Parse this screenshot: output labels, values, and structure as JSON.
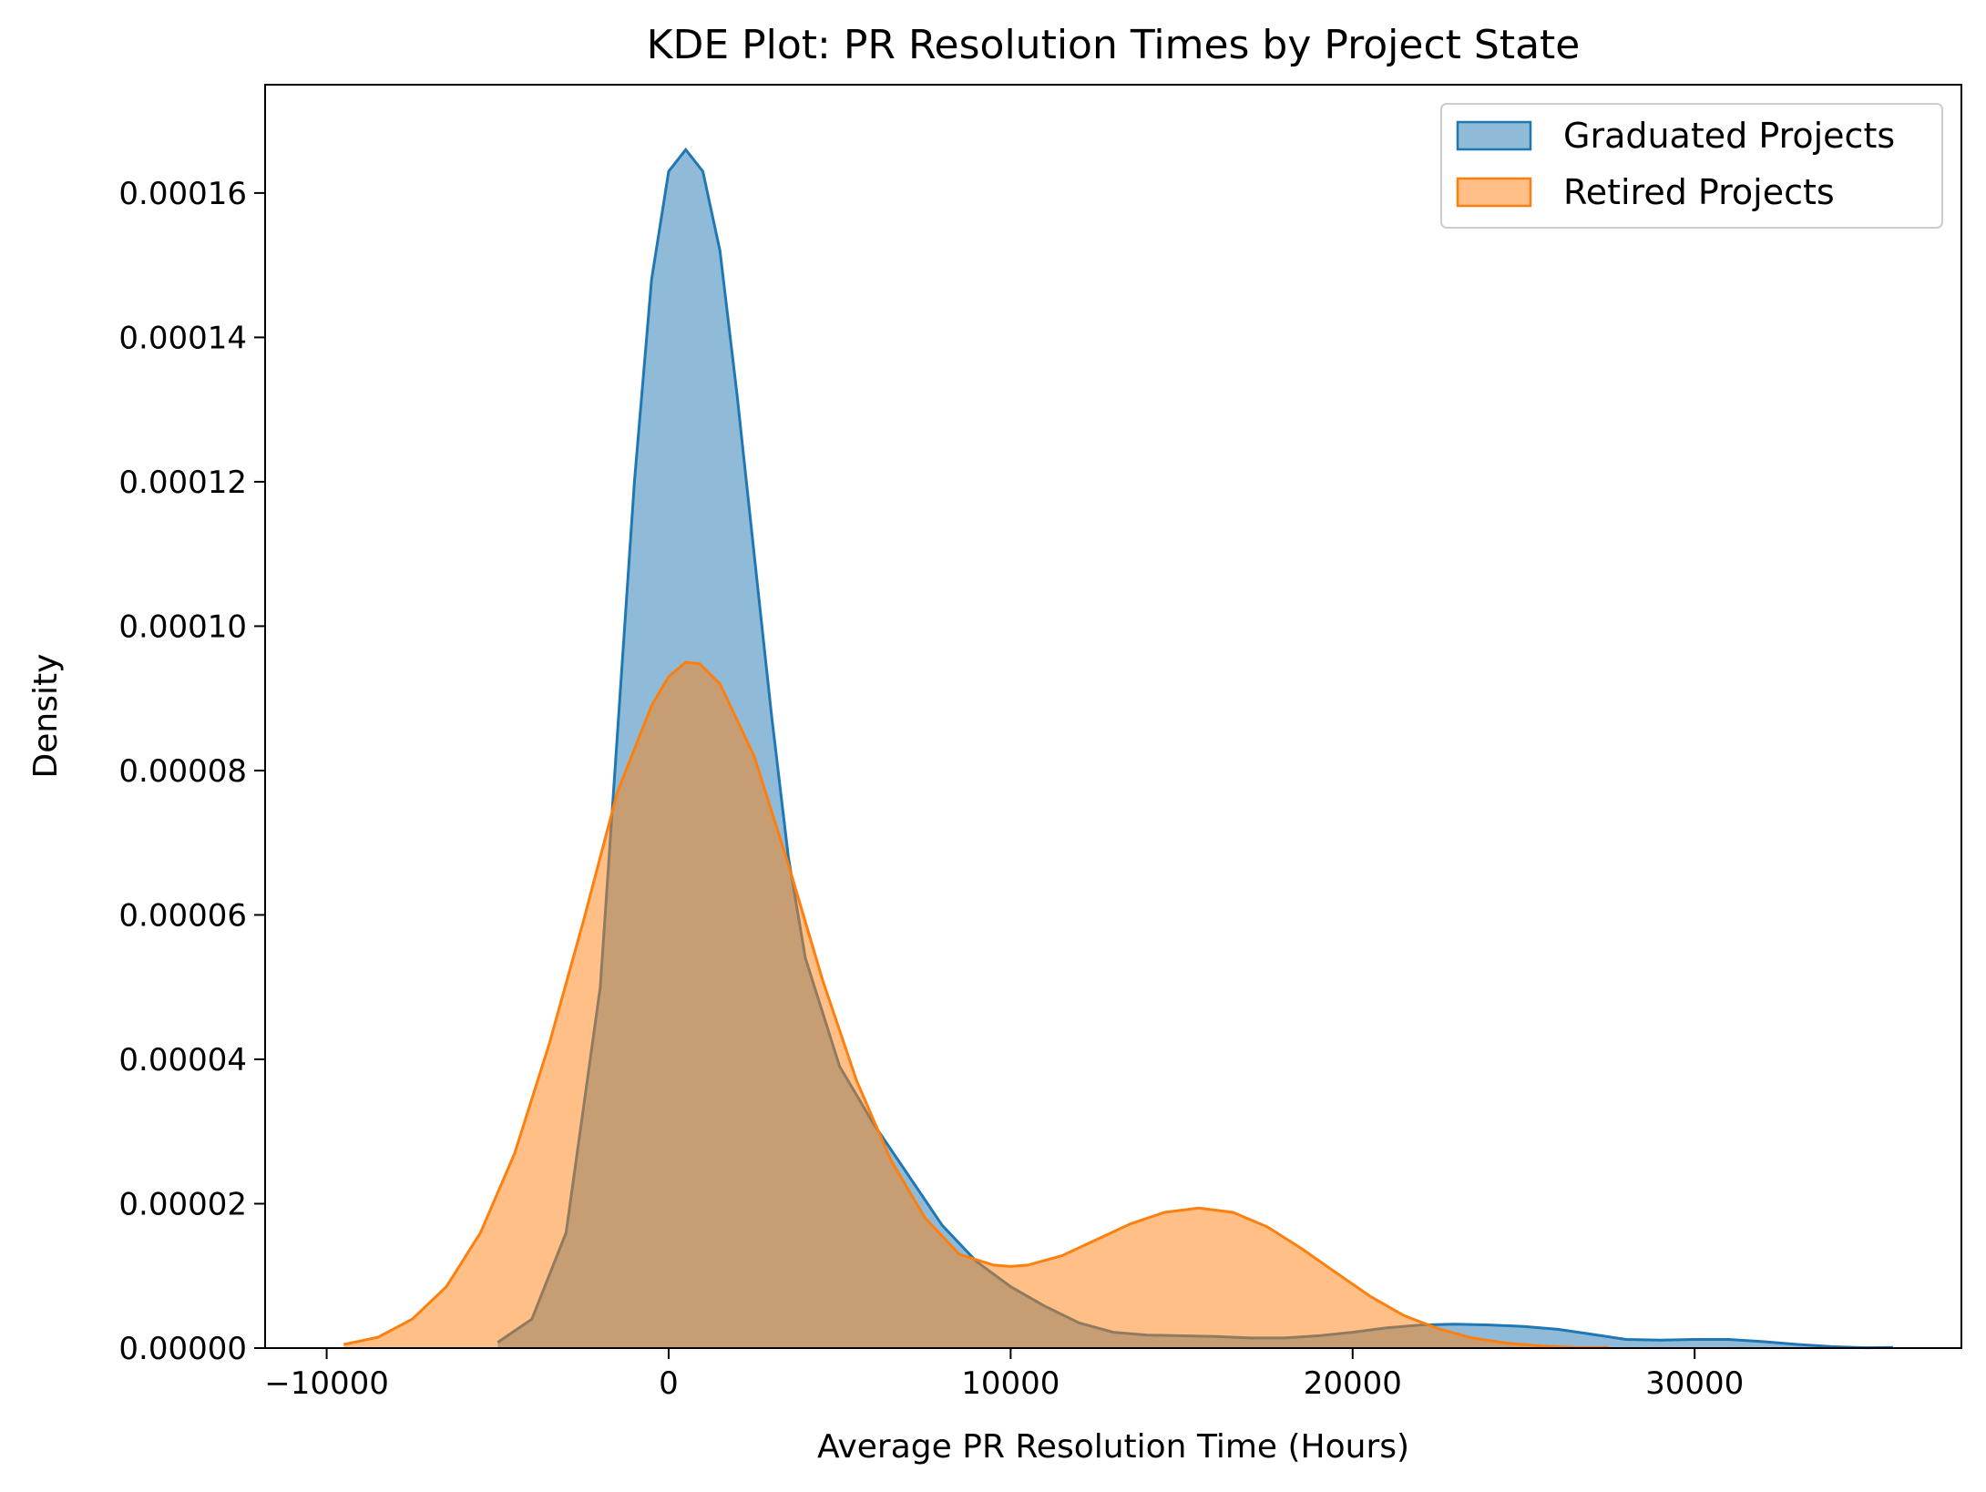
{
  "chart_data": {
    "type": "area",
    "title": "KDE Plot: PR Resolution Times by Project State",
    "xlabel": "Average PR Resolution Time (Hours)",
    "ylabel": "Density",
    "xlim": [
      -11800,
      37800
    ],
    "ylim": [
      0,
      0.000175
    ],
    "x_ticks": [
      -10000,
      0,
      10000,
      20000,
      30000
    ],
    "x_tick_labels": [
      "−10000",
      "0",
      "10000",
      "20000",
      "30000"
    ],
    "y_ticks": [
      0,
      2e-05,
      4e-05,
      6e-05,
      8e-05,
      0.0001,
      0.00012,
      0.00014,
      0.00016
    ],
    "y_tick_labels": [
      "0.00000",
      "0.00002",
      "0.00004",
      "0.00006",
      "0.00008",
      "0.00010",
      "0.00012",
      "0.00014",
      "0.00016"
    ],
    "grid": false,
    "legend_position": "top-right",
    "series": [
      {
        "name": "Graduated Projects",
        "color": "#1f77b4",
        "x": [
          -5000,
          -4000,
          -3000,
          -2000,
          -1500,
          -1000,
          -500,
          0,
          500,
          1000,
          1500,
          2000,
          2500,
          3000,
          3500,
          4000,
          5000,
          6000,
          7000,
          8000,
          9000,
          10000,
          11000,
          12000,
          13000,
          14000,
          15000,
          16000,
          17000,
          18000,
          19000,
          20000,
          21000,
          22000,
          23000,
          24000,
          25000,
          26000,
          27000,
          28000,
          29000,
          30000,
          31000,
          32000,
          33000,
          34000,
          35000,
          35800
        ],
        "y": [
          8e-07,
          4e-06,
          1.6e-05,
          5e-05,
          8.5e-05,
          0.00012,
          0.000148,
          0.000163,
          0.000166,
          0.000163,
          0.000152,
          0.000132,
          0.00011,
          8.8e-05,
          6.8e-05,
          5.4e-05,
          3.9e-05,
          3.1e-05,
          2.4e-05,
          1.7e-05,
          1.2e-05,
          8.5e-06,
          5.8e-06,
          3.5e-06,
          2.2e-06,
          1.8e-06,
          1.7e-06,
          1.6e-06,
          1.4e-06,
          1.4e-06,
          1.7e-06,
          2.2e-06,
          2.8e-06,
          3.2e-06,
          3.3e-06,
          3.2e-06,
          3e-06,
          2.6e-06,
          1.9e-06,
          1.2e-06,
          1.1e-06,
          1.2e-06,
          1.2e-06,
          9e-07,
          5e-07,
          2e-07,
          5e-08,
          1e-07
        ]
      },
      {
        "name": "Retired Projects",
        "color": "#ff7f0e",
        "x": [
          -9500,
          -8500,
          -7500,
          -6500,
          -5500,
          -4500,
          -3500,
          -2500,
          -1500,
          -500,
          0,
          500,
          900,
          1500,
          2500,
          3500,
          4500,
          5500,
          6500,
          7500,
          8500,
          9500,
          10000,
          10500,
          11500,
          12500,
          13500,
          14500,
          15500,
          16500,
          17500,
          18500,
          19500,
          20500,
          21500,
          22500,
          23500,
          24500,
          25500,
          26500,
          27500
        ],
        "y": [
          5e-07,
          1.5e-06,
          4e-06,
          8.5e-06,
          1.6e-05,
          2.7e-05,
          4.2e-05,
          5.9e-05,
          7.7e-05,
          8.9e-05,
          9.3e-05,
          9.5e-05,
          9.48e-05,
          9.2e-05,
          8.2e-05,
          6.7e-05,
          5.1e-05,
          3.7e-05,
          2.6e-05,
          1.8e-05,
          1.3e-05,
          1.15e-05,
          1.13e-05,
          1.15e-05,
          1.28e-05,
          1.5e-05,
          1.72e-05,
          1.88e-05,
          1.94e-05,
          1.88e-05,
          1.68e-05,
          1.38e-05,
          1.05e-05,
          7.2e-06,
          4.5e-06,
          2.7e-06,
          1.4e-06,
          7e-07,
          3e-07,
          1e-07,
          1e-07
        ]
      }
    ]
  }
}
